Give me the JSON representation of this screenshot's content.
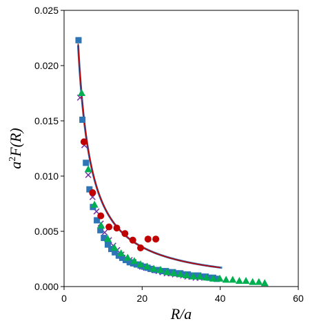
{
  "chart_data": {
    "type": "scatter",
    "title": "",
    "xlabel": "R/a",
    "ylabel_parts": {
      "base": "a",
      "sup": "2",
      "rest": "F(R)"
    },
    "xlim": [
      0,
      60
    ],
    "ylim": [
      0,
      0.025
    ],
    "x_ticks": [
      0,
      20,
      40,
      60
    ],
    "y_ticks": [
      0.0,
      0.005,
      0.01,
      0.015,
      0.02,
      0.025
    ],
    "y_tick_labels": [
      "0.000",
      "0.005",
      "0.010",
      "0.015",
      "0.020",
      "0.025"
    ],
    "grid": false,
    "series": [
      {
        "marker": "x-cross",
        "color": "#7030a0",
        "points": [
          [
            4.1,
            0.0171
          ],
          [
            5.2,
            0.0128
          ],
          [
            6.2,
            0.0101
          ],
          [
            7.3,
            0.0081
          ],
          [
            8.3,
            0.0068
          ],
          [
            9.4,
            0.0057
          ],
          [
            10.4,
            0.0049
          ],
          [
            11.5,
            0.0042
          ],
          [
            12.6,
            0.0037
          ],
          [
            13.6,
            0.0033
          ],
          [
            14.7,
            0.0029
          ],
          [
            15.7,
            0.0026
          ],
          [
            16.8,
            0.0024
          ],
          [
            17.8,
            0.0022
          ],
          [
            18.9,
            0.002
          ],
          [
            20.0,
            0.0018
          ],
          [
            21.0,
            0.0017
          ],
          [
            22.1,
            0.0016
          ],
          [
            23.1,
            0.0015
          ],
          [
            24.2,
            0.0014
          ],
          [
            25.2,
            0.0013
          ],
          [
            26.3,
            0.0012
          ],
          [
            27.3,
            0.0012
          ],
          [
            28.4,
            0.0011
          ],
          [
            29.5,
            0.0011
          ],
          [
            30.5,
            0.001
          ],
          [
            31.6,
            0.0009
          ],
          [
            32.6,
            0.0009
          ],
          [
            33.7,
            0.0008
          ],
          [
            34.7,
            0.0008
          ]
        ]
      },
      {
        "marker": "square",
        "color": "#2e75b6",
        "points": [
          [
            3.7,
            0.0223
          ],
          [
            4.7,
            0.0151
          ],
          [
            5.6,
            0.0112
          ],
          [
            6.5,
            0.0088
          ],
          [
            7.4,
            0.0072
          ],
          [
            8.4,
            0.006
          ],
          [
            9.3,
            0.0051
          ],
          [
            10.2,
            0.0044
          ],
          [
            11.2,
            0.0038
          ],
          [
            12.1,
            0.0034
          ],
          [
            13.0,
            0.0031
          ],
          [
            14.0,
            0.0028
          ],
          [
            14.9,
            0.0026
          ],
          [
            15.8,
            0.0024
          ],
          [
            16.8,
            0.0022
          ],
          [
            17.7,
            0.0021
          ],
          [
            18.6,
            0.002
          ],
          [
            19.6,
            0.0019
          ],
          [
            20.5,
            0.0018
          ],
          [
            21.4,
            0.0017
          ],
          [
            22.3,
            0.0016
          ],
          [
            23.3,
            0.0015
          ],
          [
            24.2,
            0.0015
          ],
          [
            25.1,
            0.0014
          ],
          [
            26.1,
            0.0014
          ],
          [
            27.0,
            0.0013
          ],
          [
            27.9,
            0.0013
          ],
          [
            28.9,
            0.0012
          ],
          [
            29.8,
            0.0012
          ],
          [
            30.7,
            0.0011
          ],
          [
            31.7,
            0.0011
          ],
          [
            32.6,
            0.001
          ],
          [
            33.5,
            0.001
          ],
          [
            34.4,
            0.001
          ],
          [
            35.4,
            0.0009
          ],
          [
            36.3,
            0.0009
          ],
          [
            37.2,
            0.0008
          ],
          [
            38.2,
            0.0008
          ],
          [
            39.1,
            0.0007
          ]
        ]
      },
      {
        "marker": "triangle",
        "color": "#00b050",
        "points": [
          [
            4.5,
            0.0175
          ],
          [
            6.2,
            0.0106
          ],
          [
            7.8,
            0.0074
          ],
          [
            9.5,
            0.0055
          ],
          [
            11.2,
            0.0043
          ],
          [
            12.9,
            0.0035
          ],
          [
            14.6,
            0.003
          ],
          [
            16.3,
            0.0026
          ],
          [
            18.0,
            0.0023
          ],
          [
            19.6,
            0.002
          ],
          [
            21.3,
            0.0018
          ],
          [
            23.0,
            0.0016
          ],
          [
            24.7,
            0.0015
          ],
          [
            26.4,
            0.0013
          ],
          [
            28.1,
            0.0012
          ],
          [
            29.8,
            0.0011
          ],
          [
            31.4,
            0.001
          ],
          [
            33.1,
            0.0009
          ],
          [
            34.8,
            0.0009
          ],
          [
            36.5,
            0.0008
          ],
          [
            38.2,
            0.0007
          ],
          [
            39.9,
            0.0007
          ],
          [
            41.5,
            0.0006
          ],
          [
            43.2,
            0.0006
          ],
          [
            44.9,
            0.0005
          ],
          [
            46.6,
            0.0005
          ],
          [
            48.3,
            0.0004
          ],
          [
            49.9,
            0.0004
          ],
          [
            51.4,
            0.0003
          ]
        ]
      },
      {
        "marker": "circle",
        "color": "#c00000",
        "points": [
          [
            5.1,
            0.0131
          ],
          [
            7.3,
            0.0085
          ],
          [
            9.4,
            0.0064
          ],
          [
            11.5,
            0.0054
          ],
          [
            13.5,
            0.0053
          ],
          [
            15.6,
            0.0048
          ],
          [
            17.6,
            0.0042
          ],
          [
            19.6,
            0.0035
          ],
          [
            21.5,
            0.0043
          ],
          [
            23.5,
            0.0043
          ]
        ]
      }
    ],
    "fit_curves": [
      {
        "color": "#2e75b6",
        "width": 3,
        "k": 0.0844,
        "p": 1.055,
        "x_start": 3.6,
        "x_end": 40.5
      },
      {
        "color": "#c00000",
        "width": 1.6,
        "k": 0.0855,
        "p": 1.06,
        "x_start": 3.6,
        "x_end": 40.0
      }
    ]
  }
}
